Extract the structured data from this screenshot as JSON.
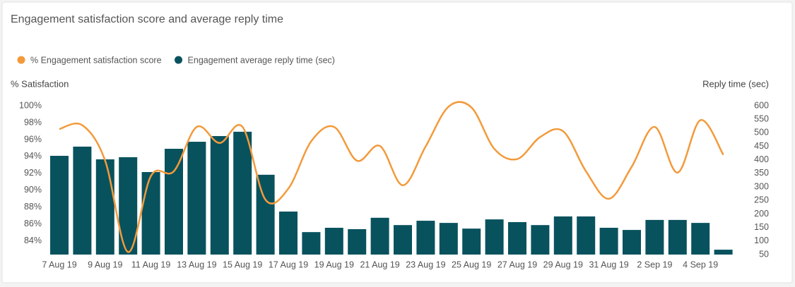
{
  "chart_data": {
    "type": "bar-line",
    "title": "Engagement satisfaction score and average reply time",
    "y_label": "% Satisfaction",
    "y2_label": "Reply time (sec)",
    "categories": [
      "7 Aug 19",
      null,
      "9 Aug 19",
      null,
      "11 Aug 19",
      null,
      "13 Aug 19",
      null,
      "15 Aug 19",
      null,
      "17 Aug 19",
      null,
      "19 Aug 19",
      null,
      "21 Aug 19",
      null,
      "23 Aug 19",
      null,
      "25 Aug 19",
      null,
      "27 Aug 19",
      null,
      "29 Aug 19",
      null,
      "31 Aug 19",
      null,
      "2 Sep 19",
      null,
      "4 Sep 19",
      null
    ],
    "series": [
      {
        "name": "% Engagement satisfaction score",
        "color": "#f39a3b",
        "kind": "line",
        "axis": "y",
        "values": [
          97.25,
          97.7,
          93.5,
          82.7,
          91.7,
          92.25,
          97.5,
          95.6,
          97.5,
          88.9,
          90.2,
          95.8,
          97.5,
          93.5,
          95.25,
          90.6,
          95.2,
          99.9,
          99.8,
          94.9,
          93.7,
          96.3,
          97.0,
          92.25,
          89.0,
          92.8,
          97.5,
          92.1,
          98.3,
          94.2
        ]
      },
      {
        "name": "Engagement average reply time (sec)",
        "color": "#08525e",
        "kind": "bar",
        "axis": "y2",
        "values": [
          415,
          449,
          402,
          410,
          355,
          441,
          467,
          488,
          504,
          345,
          209,
          133,
          149,
          144,
          186,
          159,
          175,
          167,
          146,
          180,
          170,
          159,
          191,
          191,
          149,
          141,
          178,
          178,
          167,
          68
        ]
      }
    ],
    "ylim": [
      82.4,
      100
    ],
    "yticks": [
      {
        "value": 84,
        "label": "84%"
      },
      {
        "value": 86,
        "label": "86%"
      },
      {
        "value": 88,
        "label": "88%"
      },
      {
        "value": 90,
        "label": "90%"
      },
      {
        "value": 92,
        "label": "92%"
      },
      {
        "value": 94,
        "label": "94%"
      },
      {
        "value": 96,
        "label": "96%"
      },
      {
        "value": 98,
        "label": "98%"
      },
      {
        "value": 100,
        "label": "100%"
      }
    ],
    "y2lim": [
      50,
      600
    ],
    "y2ticks": [
      50,
      100,
      150,
      200,
      250,
      300,
      350,
      400,
      450,
      500,
      550,
      600
    ],
    "legend": "top-left",
    "grid": false
  }
}
